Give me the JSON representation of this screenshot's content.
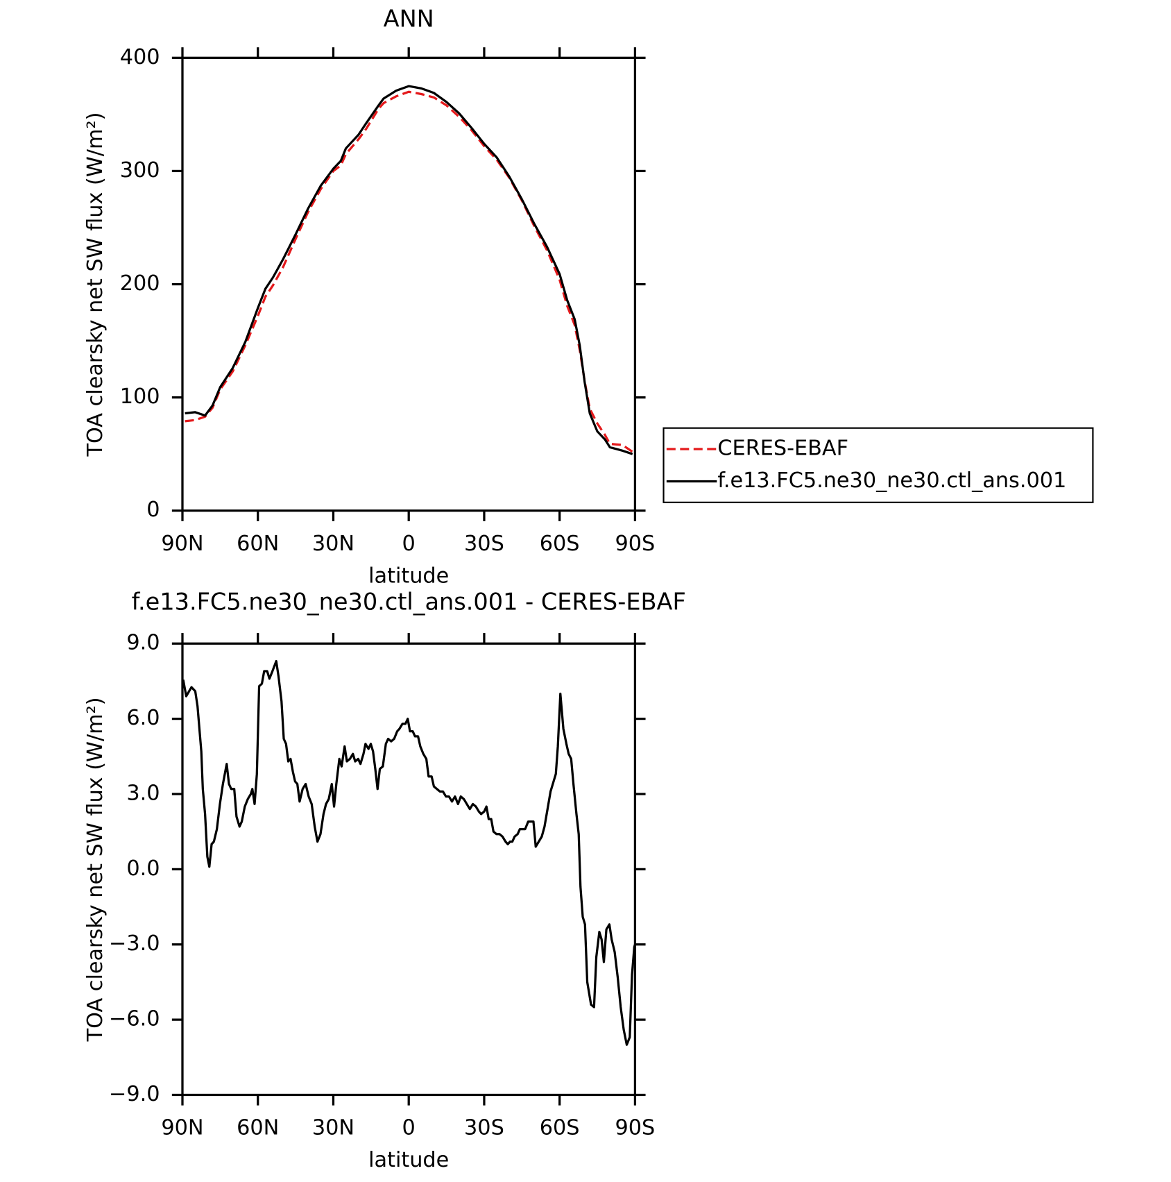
{
  "chart_data": [
    {
      "type": "line",
      "title": "ANN",
      "x_label": "latitude",
      "y_label": "TOA clearsky net SW flux (W/m²)",
      "x": [
        89,
        85,
        81,
        78,
        75,
        70,
        65,
        60,
        57,
        54,
        50,
        45,
        40,
        35,
        30,
        27,
        25,
        20,
        17,
        12,
        10,
        5,
        0,
        -5,
        -10,
        -15,
        -20,
        -25,
        -30,
        -35,
        -40,
        -45,
        -50,
        -55,
        -60,
        -63,
        -66,
        -68,
        -70,
        -72,
        -75,
        -78,
        -80,
        -85,
        -89
      ],
      "series": [
        {
          "name": "CERES-EBAF",
          "color": "#e41a1c",
          "dashed": true,
          "values": [
            79,
            80,
            83,
            91,
            107,
            123,
            146,
            172,
            189,
            199,
            215,
            240,
            264,
            284,
            300,
            305,
            315,
            328,
            337,
            355,
            360,
            366,
            370,
            368,
            365,
            358,
            348,
            336,
            322,
            310,
            294,
            274,
            251,
            230,
            204,
            181,
            164,
            142,
            114,
            90,
            77,
            67,
            59,
            58,
            52
          ]
        },
        {
          "name": "f.e13.FC5.ne30_ne30.ctl_ans.001",
          "color": "#000000",
          "dashed": false,
          "values": [
            86,
            87,
            84,
            93,
            109,
            126,
            149,
            179,
            196,
            206,
            222,
            244,
            267,
            287,
            302,
            309,
            320,
            332,
            342,
            358,
            364,
            371,
            375,
            373,
            369,
            361,
            351,
            338,
            324,
            312,
            295,
            275,
            253,
            233,
            209,
            186,
            169,
            146,
            113,
            86,
            70,
            63,
            56,
            53,
            50
          ]
        }
      ],
      "xlim": [
        90,
        -90
      ],
      "xticks": [
        {
          "value": 90,
          "label": "90N"
        },
        {
          "value": 60,
          "label": "60N"
        },
        {
          "value": 30,
          "label": "30N"
        },
        0,
        {
          "value": -30,
          "label": "30S"
        },
        {
          "value": -60,
          "label": "60S"
        },
        {
          "value": -90,
          "label": "90S"
        }
      ],
      "ylim": [
        0,
        400
      ],
      "yticks": [
        0,
        100,
        200,
        300,
        400
      ],
      "legend": "right"
    },
    {
      "type": "line",
      "title": "f.e13.FC5.ne30_ne30.ctl_ans.001 - CERES-EBAF",
      "x_label": "latitude",
      "y_label": "TOA clearsky net SW flux (W/m²)",
      "x": [
        89.7,
        88.5,
        86.4,
        84.9,
        84.0,
        82.5,
        81.9,
        81.0,
        80.1,
        79.3,
        78.4,
        77.5,
        76.3,
        75.1,
        73.9,
        72.4,
        71.5,
        70.6,
        69.4,
        68.5,
        67.3,
        66.4,
        65.2,
        64.0,
        62.8,
        62.2,
        61.3,
        60.4,
        59.5,
        58.4,
        57.5,
        56.3,
        55.4,
        54.2,
        52.7,
        51.8,
        50.6,
        49.7,
        48.8,
        47.9,
        47.0,
        46.1,
        45.2,
        44.3,
        43.4,
        42.2,
        41.0,
        39.8,
        38.6,
        37.4,
        36.3,
        35.1,
        33.9,
        32.9,
        31.8,
        30.6,
        29.7,
        28.8,
        27.6,
        26.7,
        25.5,
        24.6,
        23.4,
        22.2,
        21.3,
        20.1,
        19.2,
        18.0,
        17.2,
        16.0,
        15.1,
        14.2,
        13.3,
        12.4,
        11.5,
        10.3,
        9.1,
        8.2,
        7.0,
        5.8,
        4.6,
        3.7,
        2.5,
        1.3,
        0.4,
        -0.5,
        -1.6,
        -2.5,
        -3.7,
        -4.6,
        -5.8,
        -7.0,
        -7.9,
        -9.1,
        -10.0,
        -11.2,
        -12.4,
        -13.6,
        -14.8,
        -16.0,
        -17.2,
        -18.4,
        -19.6,
        -20.7,
        -21.9,
        -23.1,
        -24.3,
        -25.5,
        -26.7,
        -27.9,
        -28.8,
        -30.0,
        -30.9,
        -31.8,
        -32.8,
        -33.7,
        -34.9,
        -36.1,
        -37.3,
        -38.5,
        -39.4,
        -40.3,
        -41.2,
        -42.1,
        -43.3,
        -44.2,
        -45.1,
        -46.3,
        -47.5,
        -48.7,
        -49.6,
        -50.5,
        -51.7,
        -52.9,
        -54.0,
        -55.2,
        -56.4,
        -57.6,
        -58.5,
        -59.3,
        -60.3,
        -61.5,
        -62.7,
        -63.6,
        -64.6,
        -65.5,
        -66.7,
        -67.6,
        -68.3,
        -69.2,
        -70.1,
        -71.0,
        -72.5,
        -73.7,
        -74.6,
        -75.8,
        -76.7,
        -77.6,
        -78.6,
        -79.8,
        -80.7,
        -81.9,
        -83.1,
        -84.3,
        -85.5,
        -86.7,
        -87.9,
        -88.8,
        -89.7,
        -90
      ],
      "values": [
        7.56,
        6.9,
        7.26,
        7.1,
        6.5,
        4.7,
        3.2,
        2.2,
        0.5,
        0.1,
        1.0,
        1.1,
        1.6,
        2.6,
        3.4,
        4.2,
        3.4,
        3.2,
        3.2,
        2.1,
        1.7,
        1.9,
        2.5,
        2.8,
        3.0,
        3.2,
        2.6,
        3.8,
        7.3,
        7.4,
        7.9,
        7.9,
        7.6,
        7.9,
        8.3,
        7.7,
        6.7,
        5.2,
        5.0,
        4.3,
        4.4,
        3.9,
        3.5,
        3.4,
        2.7,
        3.2,
        3.4,
        2.9,
        2.6,
        1.7,
        1.1,
        1.4,
        2.2,
        2.6,
        2.8,
        3.4,
        2.5,
        3.4,
        4.4,
        4.1,
        4.9,
        4.3,
        4.4,
        4.6,
        4.3,
        4.4,
        4.2,
        4.6,
        5.0,
        4.8,
        5.0,
        4.7,
        4.0,
        3.2,
        4.0,
        4.1,
        5.0,
        5.2,
        5.1,
        5.2,
        5.5,
        5.6,
        5.8,
        5.8,
        6.0,
        5.5,
        5.5,
        5.3,
        5.3,
        4.9,
        4.6,
        4.4,
        3.7,
        3.7,
        3.3,
        3.2,
        3.1,
        3.1,
        2.9,
        2.9,
        2.7,
        2.9,
        2.6,
        2.9,
        2.8,
        2.6,
        2.4,
        2.6,
        2.5,
        2.3,
        2.2,
        2.3,
        2.5,
        2.0,
        2.0,
        1.5,
        1.4,
        1.4,
        1.3,
        1.1,
        1.0,
        1.1,
        1.1,
        1.3,
        1.4,
        1.6,
        1.6,
        1.6,
        1.9,
        1.9,
        1.9,
        0.9,
        1.1,
        1.3,
        1.7,
        2.4,
        3.1,
        3.5,
        3.8,
        4.9,
        7.0,
        5.6,
        5.0,
        4.6,
        4.4,
        3.4,
        2.2,
        1.4,
        -0.7,
        -1.9,
        -2.2,
        -4.5,
        -5.4,
        -5.5,
        -3.5,
        -2.5,
        -2.8,
        -3.7,
        -2.4,
        -2.2,
        -2.8,
        -3.3,
        -4.3,
        -5.5,
        -6.4,
        -7.0,
        -6.7,
        -4.2,
        -3.1,
        -3.0
      ],
      "color": "#000000",
      "xlim": [
        90,
        -90
      ],
      "xticks": [
        {
          "value": 90,
          "label": "90N"
        },
        {
          "value": 60,
          "label": "60N"
        },
        {
          "value": 30,
          "label": "30N"
        },
        0,
        {
          "value": -30,
          "label": "30S"
        },
        {
          "value": -60,
          "label": "60S"
        },
        {
          "value": -90,
          "label": "90S"
        }
      ],
      "ylim": [
        -9,
        9
      ],
      "yticks": [
        {
          "value": -9,
          "label": "−9.0"
        },
        {
          "value": -6,
          "label": "−6.0"
        },
        {
          "value": -3,
          "label": "−3.0"
        },
        {
          "value": 0,
          "label": "0.0"
        },
        {
          "value": 3,
          "label": "3.0"
        },
        {
          "value": 6,
          "label": "6.0"
        },
        {
          "value": 9,
          "label": "9.0"
        }
      ]
    }
  ]
}
